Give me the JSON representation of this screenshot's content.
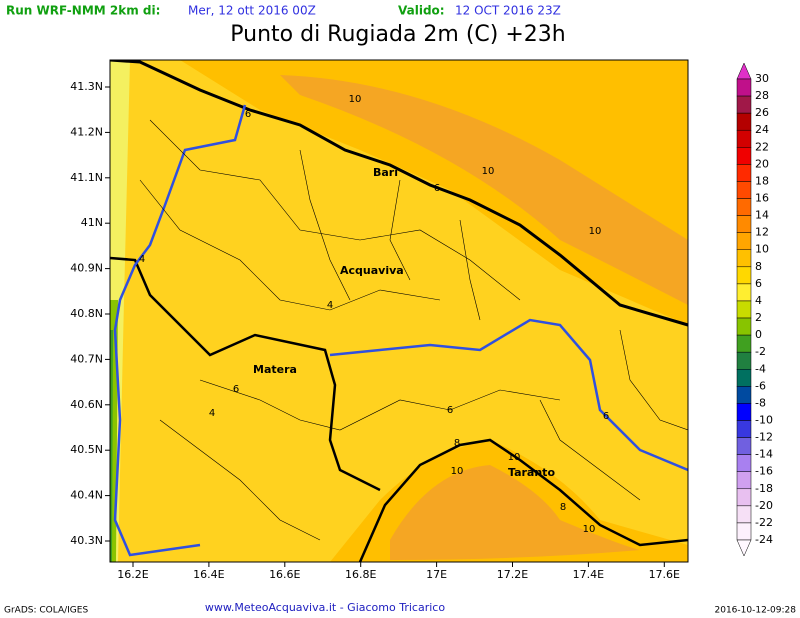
{
  "header": {
    "run_label": "Run WRF-NMM 2km di:",
    "run_date": "Mer, 12 ott 2016 00Z",
    "valid_label": "Valido:",
    "valid_date": "12 OCT 2016 23Z"
  },
  "title": "Punto di Rugiada 2m (C) +23h",
  "lat_labels": [
    "41.3N",
    "41.2N",
    "41.1N",
    "41N",
    "40.9N",
    "40.8N",
    "40.7N",
    "40.6N",
    "40.5N",
    "40.4N",
    "40.3N"
  ],
  "lon_labels": [
    "16.2E",
    "16.4E",
    "16.6E",
    "16.8E",
    "17E",
    "17.2E",
    "17.4E",
    "17.6E"
  ],
  "places": [
    "Bari",
    "Acquaviva",
    "Matera",
    "Taranto"
  ],
  "contour_labels": [
    "10",
    "6",
    "10",
    "6",
    "10",
    "4",
    "4",
    "6",
    "4",
    "6",
    "8",
    "10",
    "10",
    "6",
    "8",
    "10"
  ],
  "colorbar": {
    "labels": [
      30,
      28,
      26,
      24,
      22,
      20,
      18,
      16,
      14,
      12,
      10,
      8,
      6,
      4,
      2,
      0,
      -2,
      -4,
      -6,
      -8,
      -10,
      -12,
      -14,
      -16,
      -18,
      -20,
      -22,
      -24
    ],
    "colors": [
      "#e030c8",
      "#c0108a",
      "#a01848",
      "#b40000",
      "#d20000",
      "#f00000",
      "#ff2a00",
      "#ff4a00",
      "#ff6a00",
      "#ff8a00",
      "#ffa500",
      "#ffc000",
      "#ffd800",
      "#ffee30",
      "#c8dc00",
      "#88c400",
      "#40a020",
      "#208040",
      "#007060",
      "#004aa0",
      "#0000ff",
      "#3838e0",
      "#7060e0",
      "#a880f0",
      "#d0a0f0",
      "#e8c0f0",
      "#f6e0f6",
      "#fcf0fc",
      "#fff8ff"
    ]
  },
  "footer": {
    "left": "GrADS: COLA/IGES",
    "center": "www.MeteoAcquaviva.it - Giacomo Tricarico",
    "right": "2016-10-12-09:28"
  }
}
